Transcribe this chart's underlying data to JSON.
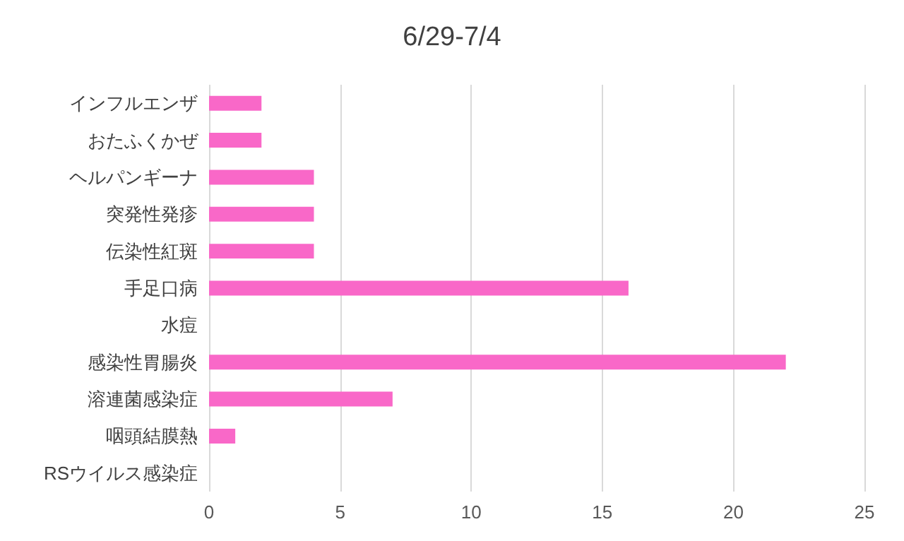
{
  "chart_data": {
    "type": "bar",
    "orientation": "horizontal",
    "title": "6/29-7/4",
    "categories": [
      "インフルエンザ",
      "おたふくかぜ",
      "ヘルパンギーナ",
      "突発性発疹",
      "伝染性紅斑",
      "手足口病",
      "水痘",
      "感染性胃腸炎",
      "溶連菌感染症",
      "咽頭結膜熱",
      "RSウイルス感染症"
    ],
    "values": [
      2,
      2,
      4,
      4,
      4,
      16,
      0,
      22,
      7,
      1,
      0
    ],
    "color": "#f968c8",
    "xlim": [
      0,
      25
    ],
    "xticks": [
      0,
      5,
      10,
      15,
      20,
      25
    ],
    "grid": "x"
  }
}
